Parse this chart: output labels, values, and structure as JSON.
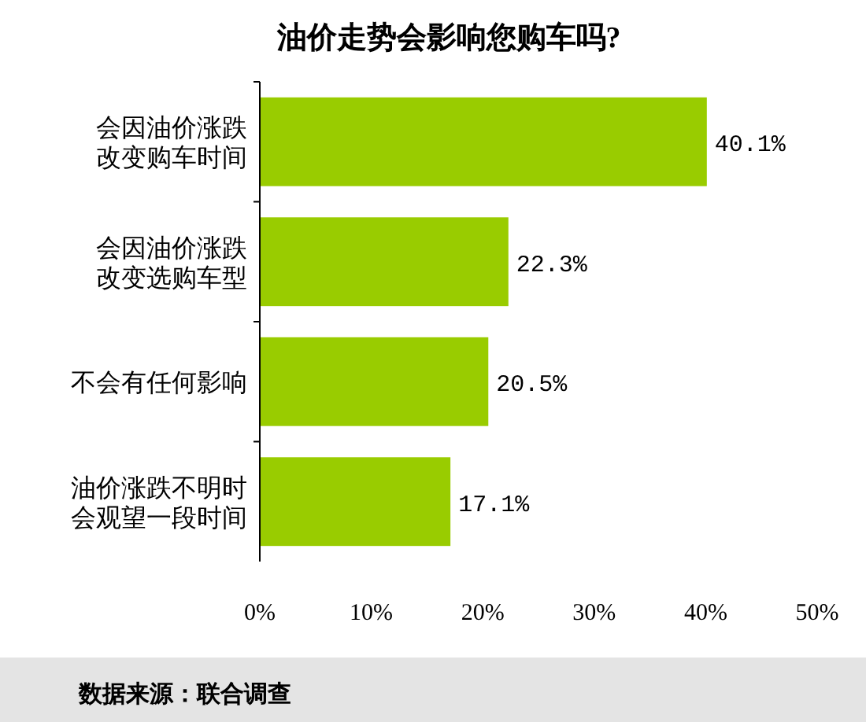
{
  "chart_data": {
    "type": "bar",
    "orientation": "horizontal",
    "title": "油价走势会影响您购车吗?",
    "categories": [
      "会因油价涨跌改变购车时间",
      "会因油价涨跌改变选购车型",
      "不会有任何影响",
      "油价涨跌不明时会观望一段时间"
    ],
    "values": [
      40.1,
      22.3,
      20.5,
      17.1
    ],
    "value_labels": [
      "40.1%",
      "22.3%",
      "20.5%",
      "17.1%"
    ],
    "color": "#99cc00",
    "xlim": [
      0,
      50
    ],
    "xticks": [
      {
        "value": 0,
        "label": "0%"
      },
      {
        "value": 10,
        "label": "10%"
      },
      {
        "value": 20,
        "label": "20%"
      },
      {
        "value": 30,
        "label": "30%"
      },
      {
        "value": 40,
        "label": "40%"
      },
      {
        "value": 50,
        "label": "50%"
      }
    ],
    "annotations": [
      "数据来源：联合调查"
    ]
  }
}
